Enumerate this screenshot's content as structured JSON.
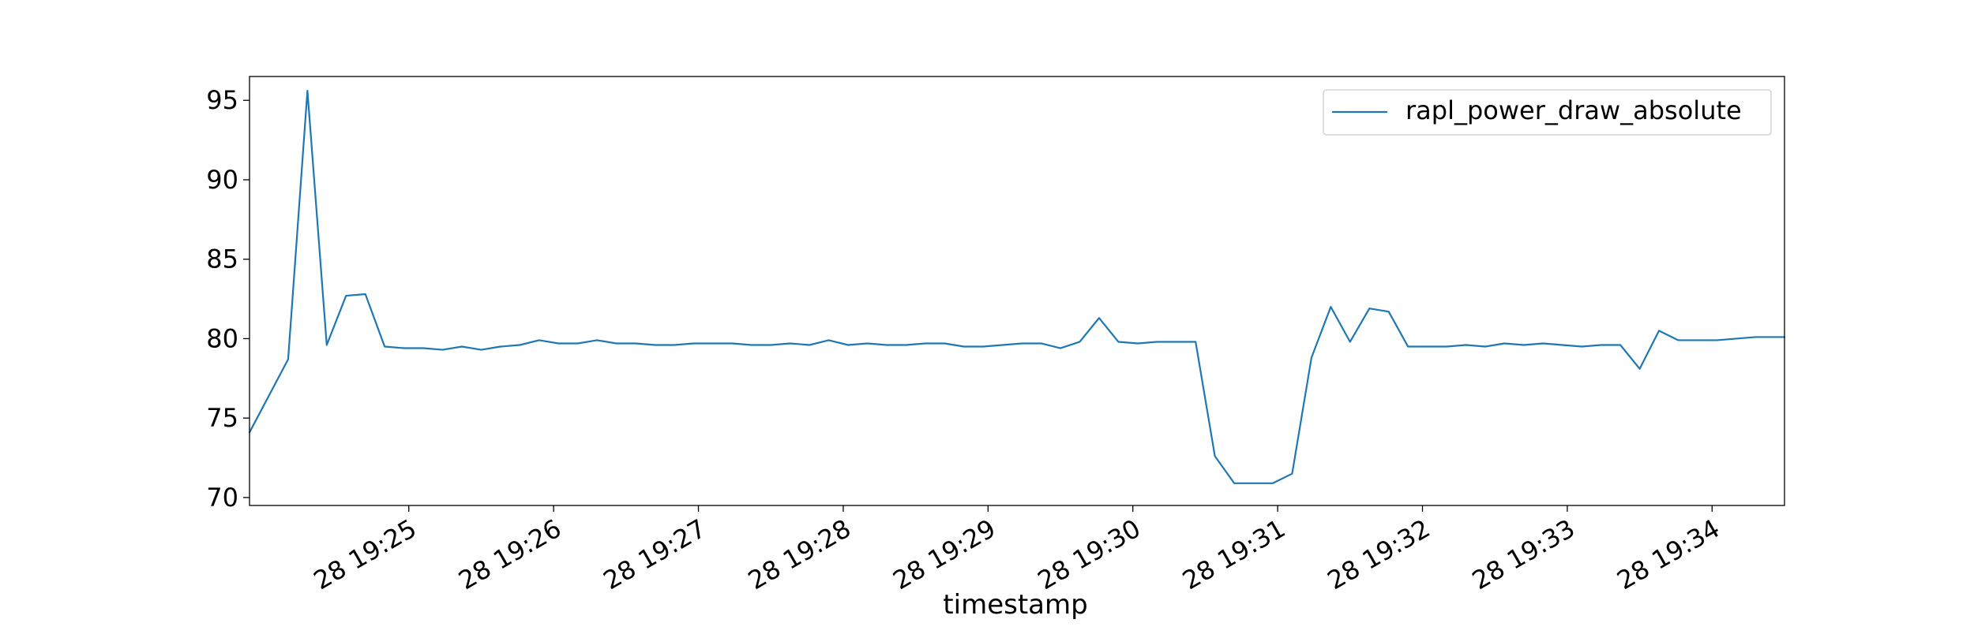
{
  "chart_data": {
    "type": "line",
    "title": "",
    "xlabel": "timestamp",
    "ylabel": "",
    "x_axis_type": "time",
    "x_start": "19:23:54",
    "x_end": "19:34:30",
    "xlim": [
      "19:23:54",
      "19:34:30"
    ],
    "ylim": [
      69.5,
      96.5
    ],
    "y_ticks": [
      70,
      75,
      80,
      85,
      90,
      95
    ],
    "x_ticks": [
      {
        "time": "19:25:00",
        "label": "28 19:25"
      },
      {
        "time": "19:26:00",
        "label": "28 19:26"
      },
      {
        "time": "19:27:00",
        "label": "28 19:27"
      },
      {
        "time": "19:28:00",
        "label": "28 19:28"
      },
      {
        "time": "19:29:00",
        "label": "28 19:29"
      },
      {
        "time": "19:30:00",
        "label": "28 19:30"
      },
      {
        "time": "19:31:00",
        "label": "28 19:31"
      },
      {
        "time": "19:32:00",
        "label": "28 19:32"
      },
      {
        "time": "19:33:00",
        "label": "28 19:33"
      },
      {
        "time": "19:34:00",
        "label": "28 19:34"
      }
    ],
    "grid": false,
    "legend_position": "upper right",
    "series": [
      {
        "name": "rapl_power_draw_absolute",
        "color": "#1f77b4",
        "x": [
          "19:23:54",
          "19:24:02",
          "19:24:10",
          "19:24:18",
          "19:24:26",
          "19:24:34",
          "19:24:42",
          "19:24:50",
          "19:24:58",
          "19:25:06",
          "19:25:14",
          "19:25:22",
          "19:25:30",
          "19:25:38",
          "19:25:46",
          "19:25:54",
          "19:26:02",
          "19:26:10",
          "19:26:18",
          "19:26:26",
          "19:26:34",
          "19:26:42",
          "19:26:50",
          "19:26:58",
          "19:27:06",
          "19:27:14",
          "19:27:22",
          "19:27:30",
          "19:27:38",
          "19:27:46",
          "19:27:54",
          "19:28:02",
          "19:28:10",
          "19:28:18",
          "19:28:26",
          "19:28:34",
          "19:28:42",
          "19:28:50",
          "19:28:58",
          "19:29:06",
          "19:29:14",
          "19:29:22",
          "19:29:30",
          "19:29:38",
          "19:29:46",
          "19:29:54",
          "19:30:02",
          "19:30:10",
          "19:30:18",
          "19:30:26",
          "19:30:34",
          "19:30:42",
          "19:30:50",
          "19:30:58",
          "19:31:06",
          "19:31:14",
          "19:31:22",
          "19:31:30",
          "19:31:38",
          "19:31:46",
          "19:31:54",
          "19:32:02",
          "19:32:10",
          "19:32:18",
          "19:32:26",
          "19:32:34",
          "19:32:42",
          "19:32:50",
          "19:32:58",
          "19:33:06",
          "19:33:14",
          "19:33:22",
          "19:33:30",
          "19:33:38",
          "19:33:46",
          "19:33:54",
          "19:34:02",
          "19:34:10",
          "19:34:18",
          "19:34:26",
          "19:34:30"
        ],
        "values": [
          74.1,
          76.4,
          78.7,
          95.6,
          79.6,
          82.7,
          82.8,
          79.5,
          79.4,
          79.4,
          79.3,
          79.5,
          79.3,
          79.5,
          79.6,
          79.9,
          79.7,
          79.7,
          79.9,
          79.7,
          79.7,
          79.6,
          79.6,
          79.7,
          79.7,
          79.7,
          79.6,
          79.6,
          79.7,
          79.6,
          79.9,
          79.6,
          79.7,
          79.6,
          79.6,
          79.7,
          79.7,
          79.5,
          79.5,
          79.6,
          79.7,
          79.7,
          79.4,
          79.8,
          81.3,
          79.8,
          79.7,
          79.8,
          79.8,
          79.8,
          72.6,
          70.9,
          70.9,
          70.9,
          71.5,
          78.8,
          82.0,
          79.8,
          81.9,
          81.7,
          79.5,
          79.5,
          79.5,
          79.6,
          79.5,
          79.7,
          79.6,
          79.7,
          79.6,
          79.5,
          79.6,
          79.6,
          78.1,
          80.5,
          79.9,
          79.9,
          79.9,
          80.0,
          80.1,
          80.1,
          80.1
        ]
      }
    ]
  }
}
